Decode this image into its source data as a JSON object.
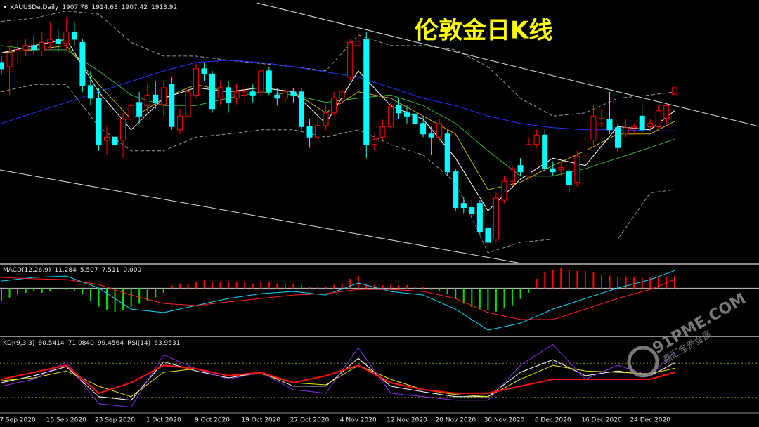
{
  "watermark": {
    "site": "91PME.COM",
    "name": "鑫汇宝贵金属"
  },
  "chart_data": [
    {
      "type": "candlestick",
      "title": "伦敦金日K线",
      "symbol": "XAUUSDe,Daily",
      "categories": [
        null,
        null,
        "7 Sep 2020",
        null,
        null,
        null,
        null,
        null,
        "15 Sep 2020",
        null,
        null,
        null,
        null,
        null,
        "23 Sep 2020",
        null,
        null,
        null,
        null,
        null,
        "1 Oct 2020",
        null,
        null,
        null,
        null,
        null,
        "9 Oct 2020",
        null,
        null,
        null,
        null,
        null,
        "19 Oct 2020",
        null,
        null,
        null,
        null,
        null,
        "27 Oct 2020",
        null,
        null,
        null,
        null,
        null,
        "4 Nov 2020",
        null,
        null,
        null,
        null,
        null,
        "12 Nov 2020",
        null,
        null,
        null,
        null,
        null,
        "20 Nov 2020",
        null,
        null,
        null,
        null,
        null,
        "30 Nov 2020",
        null,
        null,
        null,
        null,
        null,
        "8 Dec 2020",
        null,
        null,
        null,
        null,
        null,
        "16 Dec 2020",
        null,
        null,
        null,
        null,
        null,
        "24 Dec 2020",
        null,
        null,
        null
      ],
      "open": [
        1938,
        1934,
        1947,
        1950,
        1954,
        1949,
        1957,
        1960,
        1956,
        1967,
        1957,
        1916,
        1904,
        1864,
        1867,
        1864,
        1884,
        1900,
        1897,
        1907,
        1898,
        1917,
        1874,
        1887,
        1907,
        1932,
        1927,
        1904,
        1914,
        1904,
        1907,
        1910,
        1910,
        1930,
        1907,
        1904,
        1910,
        1910,
        1877,
        1867,
        1878,
        1890,
        1904,
        1924,
        1954,
        1960,
        1860,
        1867,
        1877,
        1897,
        1890,
        1889,
        1880,
        1870,
        1867,
        1870,
        1834,
        1804,
        1800,
        1804,
        1780,
        1770,
        1807,
        1825,
        1840,
        1830,
        1860,
        1869,
        1837,
        1836,
        1834,
        1824,
        1850,
        1864,
        1880,
        1884,
        1876,
        1870,
        1876,
        1887,
        1877,
        1877,
        1885,
        1907.78
      ],
      "high": [
        1944,
        1954,
        1957,
        1960,
        1964,
        1967,
        1977,
        1970,
        1980,
        1977,
        1960,
        1930,
        1914,
        1877,
        1874,
        1890,
        1904,
        1910,
        1917,
        1920,
        1920,
        1924,
        1894,
        1917,
        1937,
        1938,
        1930,
        1920,
        1920,
        1917,
        1917,
        1917,
        1937,
        1934,
        1914,
        1914,
        1914,
        1914,
        1884,
        1884,
        1897,
        1910,
        1920,
        1960,
        1970,
        1967,
        1870,
        1884,
        1900,
        1904,
        1897,
        1897,
        1887,
        1877,
        1884,
        1874,
        1837,
        1810,
        1807,
        1807,
        1784,
        1814,
        1830,
        1840,
        1847,
        1867,
        1874,
        1874,
        1844,
        1844,
        1837,
        1854,
        1867,
        1897,
        1894,
        1910,
        1880,
        1884,
        1880,
        1904,
        1884,
        1897,
        1900,
        1914.63
      ],
      "low": [
        1927,
        1907,
        1937,
        1944,
        1945,
        1944,
        1950,
        1947,
        1950,
        1954,
        1910,
        1897,
        1854,
        1850,
        1854,
        1847,
        1877,
        1880,
        1890,
        1894,
        1887,
        1874,
        1870,
        1884,
        1904,
        1920,
        1890,
        1897,
        1890,
        1897,
        1900,
        1900,
        1904,
        1907,
        1897,
        1900,
        1900,
        1874,
        1857,
        1864,
        1874,
        1887,
        1900,
        1920,
        1950,
        1847,
        1854,
        1864,
        1874,
        1884,
        1880,
        1874,
        1867,
        1850,
        1864,
        1830,
        1797,
        1794,
        1790,
        1774,
        1760,
        1767,
        1804,
        1820,
        1830,
        1827,
        1857,
        1834,
        1830,
        1830,
        1814,
        1820,
        1847,
        1860,
        1877,
        1870,
        1854,
        1867,
        1870,
        1870,
        1874,
        1874,
        1880,
        1907.42
      ],
      "close": [
        1932,
        1947,
        1950,
        1954,
        1950,
        1957,
        1960,
        1956,
        1967,
        1960,
        1916,
        1904,
        1860,
        1867,
        1860,
        1884,
        1897,
        1887,
        1907,
        1900,
        1914,
        1877,
        1887,
        1910,
        1932,
        1927,
        1894,
        1914,
        1900,
        1910,
        1910,
        1907,
        1930,
        1910,
        1904,
        1910,
        1907,
        1877,
        1867,
        1878,
        1890,
        1904,
        1910,
        1957,
        1958,
        1860,
        1865,
        1877,
        1896,
        1890,
        1887,
        1880,
        1870,
        1867,
        1880,
        1834,
        1800,
        1800,
        1794,
        1777,
        1767,
        1809,
        1825,
        1836,
        1834,
        1860,
        1869,
        1837,
        1834,
        1838,
        1822,
        1849,
        1864,
        1887,
        1885,
        1874,
        1857,
        1876,
        1877,
        1874,
        1880,
        1892,
        1897,
        1913.92
      ],
      "up_color": "#ff0000",
      "down_color": "#00ffff",
      "ylim": [
        1747,
        1994
      ],
      "overlay_x": [
        0,
        4,
        8,
        12,
        16,
        20,
        24,
        28,
        32,
        36,
        40,
        44,
        48,
        52,
        56,
        60,
        64,
        68,
        72,
        76,
        80,
        83
      ],
      "overlays": [
        {
          "color": "#9a9a9a",
          "dashed": true,
          "values": [
            1977,
            1980,
            1987,
            1984,
            1957,
            1944,
            1944,
            1940,
            1937,
            1934,
            1930,
            1964,
            1954,
            1954,
            1950,
            1934,
            1904,
            1887,
            1890,
            1904,
            1907,
            1910
          ]
        },
        {
          "color": "#9a9a9a",
          "dashed": true,
          "values": [
            1910,
            1917,
            1917,
            1877,
            1854,
            1854,
            1867,
            1870,
            1874,
            1874,
            1867,
            1874,
            1860,
            1850,
            1824,
            1757,
            1767,
            1770,
            1770,
            1770,
            1814,
            1817
          ]
        },
        {
          "color": "#2436ff",
          "dashed": false,
          "values": [
            1880,
            1890,
            1900,
            1910,
            1920,
            1930,
            1938,
            1940,
            1938,
            1934,
            1929,
            1924,
            1914,
            1904,
            1897,
            1887,
            1880,
            1876,
            1874,
            1874,
            1873,
            1873
          ]
        },
        {
          "color": "#3cb43c",
          "dashed": false,
          "values": [
            1954,
            1950,
            1950,
            1930,
            1907,
            1897,
            1897,
            1904,
            1910,
            1907,
            1900,
            1904,
            1907,
            1897,
            1880,
            1854,
            1830,
            1830,
            1837,
            1847,
            1857,
            1865
          ]
        },
        {
          "color": "#d2b400",
          "dashed": false,
          "values": [
            1947,
            1950,
            1954,
            1917,
            1884,
            1904,
            1917,
            1910,
            1914,
            1910,
            1890,
            1910,
            1904,
            1887,
            1870,
            1817,
            1824,
            1840,
            1854,
            1870,
            1870,
            1882
          ]
        },
        {
          "color": "#ffffff",
          "dashed": false,
          "values": [
            1947,
            1954,
            1960,
            1910,
            1874,
            1904,
            1914,
            1910,
            1914,
            1910,
            1880,
            1930,
            1897,
            1884,
            1847,
            1797,
            1827,
            1847,
            1840,
            1877,
            1874,
            1892
          ]
        }
      ]
    },
    {
      "type": "macd",
      "label": "MACD(12,26,9)",
      "readout_extra": "0.000",
      "ylim": [
        -30,
        15
      ],
      "yticks": [
        0
      ],
      "histogram": {
        "up_color": "#ff0000",
        "down_color": "#00e000",
        "values": [
          -8,
          -6,
          -4,
          -3,
          -2,
          -3,
          -2,
          -1,
          -1,
          -2,
          -4,
          -8,
          -12,
          -14,
          -15,
          -14,
          -12,
          -10,
          -8,
          -6,
          -3,
          2,
          3,
          3,
          4,
          5,
          4,
          4,
          4,
          4,
          4,
          3,
          4,
          4,
          3,
          3,
          3,
          2,
          1,
          1,
          1,
          2,
          3,
          6,
          8,
          3,
          2,
          2,
          2,
          2,
          2,
          1,
          1,
          -1,
          -2,
          -4,
          -7,
          -10,
          -12,
          -13,
          -14,
          -15,
          -13,
          -11,
          -7,
          -3,
          6,
          10,
          12,
          13,
          12,
          11,
          11,
          10,
          9,
          8,
          7,
          7,
          7,
          7,
          7,
          7,
          7.5,
          7.511
        ]
      },
      "x": [
        0,
        4,
        8,
        12,
        16,
        20,
        24,
        28,
        32,
        36,
        40,
        44,
        48,
        52,
        56,
        60,
        64,
        68,
        72,
        76,
        80,
        83
      ],
      "series": [
        {
          "color": "#00d8ff",
          "values": [
            4.6,
            6.9,
            7.8,
            0.1,
            -13.4,
            -15.6,
            -11.1,
            -6.6,
            -3.5,
            -2.1,
            -4.4,
            3.3,
            -2.1,
            -4.4,
            -13.4,
            -26.9,
            -22.4,
            -13.4,
            -6.6,
            0.1,
            5.5,
            11.284
          ]
        },
        {
          "color": "#ff2020",
          "values": [
            6.9,
            6.0,
            5.5,
            2.4,
            -4.4,
            -9.8,
            -11.1,
            -8.8,
            -6.6,
            -4.4,
            -3.5,
            -0.8,
            -0.8,
            -2.1,
            -6.6,
            -15.6,
            -20.1,
            -20.1,
            -13.4,
            -6.6,
            -0.8,
            5.507
          ]
        }
      ]
    },
    {
      "type": "line",
      "label": "KDJ(9,3,3)",
      "label2": "RSI(14)",
      "ylim": [
        0,
        100
      ],
      "yticks": [
        20,
        80
      ],
      "x": [
        0,
        4,
        8,
        12,
        16,
        20,
        24,
        28,
        32,
        36,
        40,
        44,
        48,
        52,
        56,
        60,
        64,
        68,
        72,
        76,
        80,
        83
      ],
      "series": [
        {
          "color": "#ffffff",
          "width": 1,
          "values": [
            45.7,
            58.0,
            74.0,
            21.2,
            15.1,
            82.5,
            66.6,
            54.3,
            64.1,
            39.6,
            39.6,
            88.6,
            39.6,
            29.8,
            21.2,
            21.2,
            64.1,
            86.2,
            58.0,
            66.6,
            58.0,
            80.5414
          ]
        },
        {
          "color": "#e6e600",
          "width": 1,
          "values": [
            49.4,
            54.3,
            66.6,
            39.6,
            21.2,
            64.1,
            70.2,
            58.0,
            61.6,
            45.7,
            42.0,
            76.3,
            51.8,
            33.5,
            24.9,
            21.2,
            51.8,
            76.3,
            66.6,
            64.1,
            61.6,
            71.084
          ],
          "value_labels": [
            null,
            null,
            null,
            null,
            null,
            null,
            null,
            null,
            null,
            null,
            null,
            null,
            null,
            null,
            null,
            null,
            null,
            null,
            null,
            null,
            null,
            "71.0840"
          ]
        },
        {
          "color": "#8a2be2",
          "width": 1,
          "values": [
            39.6,
            51.8,
            82.5,
            8.9,
            2.8,
            94.7,
            70.2,
            51.8,
            64.1,
            33.5,
            27.3,
            106.9,
            27.3,
            21.2,
            15.1,
            15.1,
            76.3,
            113.1,
            51.8,
            76.3,
            58.0,
            99.4564
          ]
        },
        {
          "color": "#ff1010",
          "width": 2,
          "values": [
            51.8,
            64.1,
            76.3,
            27.3,
            45.7,
            76.3,
            70.2,
            58.0,
            64.1,
            45.7,
            58.0,
            76.3,
            45.7,
            33.5,
            27.3,
            27.3,
            39.6,
            51.8,
            51.8,
            51.8,
            51.8,
            63.9531
          ]
        }
      ]
    }
  ]
}
